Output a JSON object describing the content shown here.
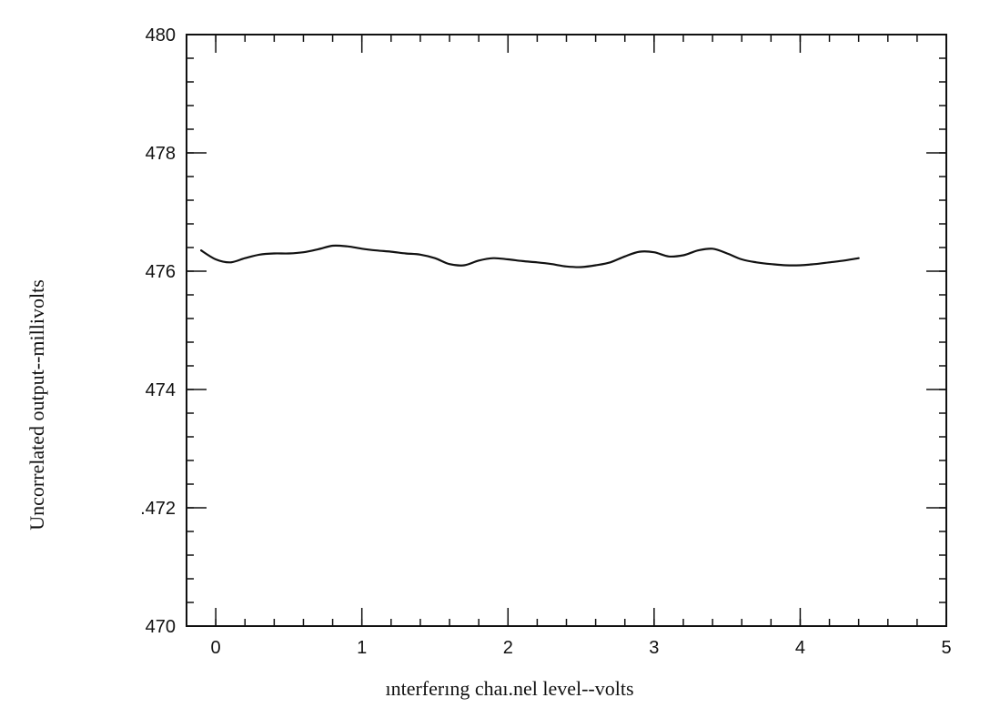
{
  "chart_data": {
    "type": "line",
    "title": "",
    "xlabel": "ınterferıng chaı.nel level--volts",
    "ylabel": "Uncorrelated output--millivolts",
    "xlim": [
      -0.2,
      5
    ],
    "ylim": [
      470,
      480
    ],
    "xticks": [
      0,
      1,
      2,
      3,
      4,
      5
    ],
    "yticks": [
      470,
      472,
      474,
      476,
      478,
      480
    ],
    "x_tick_labels": [
      "0",
      "1",
      "2",
      "3",
      "4",
      "5"
    ],
    "y_tick_labels": [
      "470",
      ".472",
      "474",
      "476",
      "478",
      "480"
    ],
    "x_minor_step": 0.2,
    "y_minor_step": 0.4,
    "grid": false,
    "legend": "none",
    "series": [
      {
        "x": [
          -0.1,
          0.0,
          0.1,
          0.2,
          0.3,
          0.4,
          0.5,
          0.6,
          0.7,
          0.8,
          0.9,
          1.0,
          1.1,
          1.2,
          1.3,
          1.4,
          1.5,
          1.6,
          1.7,
          1.8,
          1.9,
          2.0,
          2.1,
          2.2,
          2.3,
          2.4,
          2.5,
          2.6,
          2.7,
          2.8,
          2.9,
          3.0,
          3.1,
          3.2,
          3.3,
          3.4,
          3.5,
          3.6,
          3.7,
          3.8,
          3.9,
          4.0,
          4.1,
          4.2,
          4.3,
          4.4
        ],
        "values": [
          476.35,
          476.2,
          476.15,
          476.22,
          476.28,
          476.3,
          476.3,
          476.32,
          476.37,
          476.43,
          476.42,
          476.38,
          476.35,
          476.33,
          476.3,
          476.28,
          476.22,
          476.12,
          476.1,
          476.18,
          476.22,
          476.2,
          476.17,
          476.15,
          476.12,
          476.08,
          476.07,
          476.1,
          476.15,
          476.25,
          476.33,
          476.32,
          476.25,
          476.27,
          476.35,
          476.38,
          476.3,
          476.2,
          476.15,
          476.12,
          476.1,
          476.1,
          476.12,
          476.15,
          476.18,
          476.22
        ]
      }
    ]
  }
}
